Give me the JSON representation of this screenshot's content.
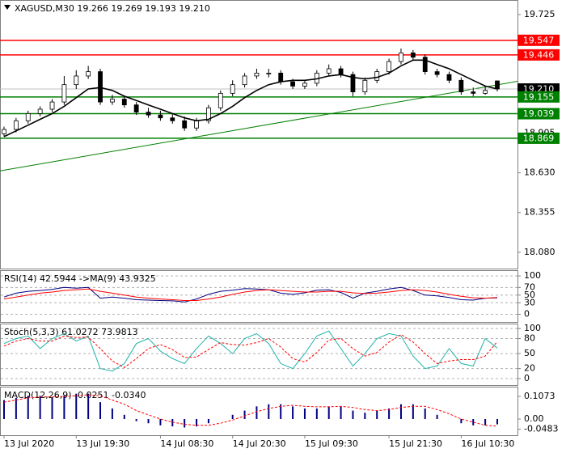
{
  "chart_data": [
    {
      "type": "candlestick",
      "title": "XAGUSD,M30  19.266 19.269 19.193 19.210",
      "open": [
        18.9,
        18.93,
        18.99,
        19.04,
        19.07,
        19.12,
        19.24,
        19.3,
        19.33,
        19.12,
        19.14,
        19.1,
        19.05,
        19.03,
        19.01,
        18.99,
        18.94,
        18.99,
        19.08,
        19.18,
        19.24,
        19.3,
        19.32,
        19.32,
        19.26,
        19.23,
        19.25,
        19.32,
        19.35,
        19.31,
        19.19,
        19.27,
        19.33,
        19.4,
        19.46,
        19.43,
        19.33,
        19.31,
        19.27,
        19.19,
        19.18,
        19.266
      ],
      "high": [
        18.95,
        19.01,
        19.06,
        19.09,
        19.14,
        19.3,
        19.34,
        19.37,
        19.35,
        19.17,
        19.16,
        19.12,
        19.08,
        19.06,
        19.04,
        19.02,
        19.01,
        19.1,
        19.2,
        19.27,
        19.32,
        19.35,
        19.35,
        19.34,
        19.28,
        19.27,
        19.34,
        19.38,
        19.37,
        19.33,
        19.29,
        19.35,
        19.42,
        19.49,
        19.48,
        19.45,
        19.35,
        19.33,
        19.29,
        19.22,
        19.23,
        19.269
      ],
      "low": [
        18.88,
        18.91,
        18.97,
        19.02,
        19.05,
        19.1,
        19.21,
        19.28,
        19.1,
        19.1,
        19.08,
        19.03,
        19.01,
        18.99,
        18.97,
        18.92,
        18.92,
        18.97,
        19.06,
        19.16,
        19.22,
        19.28,
        19.29,
        19.24,
        19.21,
        19.21,
        19.23,
        19.3,
        19.29,
        19.16,
        19.17,
        19.25,
        19.31,
        19.38,
        19.41,
        19.31,
        19.29,
        19.25,
        19.17,
        19.16,
        19.17,
        19.193
      ],
      "close": [
        18.93,
        18.99,
        19.04,
        19.07,
        19.12,
        19.24,
        19.3,
        19.33,
        19.12,
        19.14,
        19.1,
        19.05,
        19.03,
        19.01,
        18.99,
        18.94,
        18.99,
        19.08,
        19.18,
        19.24,
        19.3,
        19.32,
        19.32,
        19.26,
        19.23,
        19.25,
        19.32,
        19.35,
        19.31,
        19.19,
        19.27,
        19.33,
        19.4,
        19.46,
        19.43,
        19.33,
        19.31,
        19.27,
        19.19,
        19.18,
        19.2,
        19.21
      ],
      "series": [
        {
          "color": "#000000",
          "values": [
            18.88,
            18.92,
            18.96,
            19.0,
            19.04,
            19.09,
            19.15,
            19.21,
            19.22,
            19.2,
            19.16,
            19.13,
            19.1,
            19.07,
            19.04,
            19.01,
            18.99,
            19.0,
            19.04,
            19.09,
            19.15,
            19.2,
            19.24,
            19.26,
            19.27,
            19.27,
            19.28,
            19.3,
            19.31,
            19.29,
            19.28,
            19.29,
            19.32,
            19.37,
            19.41,
            19.41,
            19.38,
            19.35,
            19.31,
            19.27,
            19.23,
            19.21
          ]
        }
      ],
      "levels": [
        {
          "value": 19.547,
          "label": "19.547",
          "color": "#ff0000"
        },
        {
          "value": 19.446,
          "label": "19.446",
          "color": "#ff0000"
        },
        {
          "value": 19.21,
          "label": "19.210",
          "color": "#000000"
        },
        {
          "value": 19.155,
          "label": "19.155",
          "color": "#008000"
        },
        {
          "value": 19.039,
          "label": "19.039",
          "color": "#008000"
        },
        {
          "value": 18.869,
          "label": "18.869",
          "color": "#008000"
        }
      ],
      "trendline": {
        "color": "#008000",
        "values": [
          18.643,
          19.263
        ]
      },
      "ylim": [
        17.967,
        19.826
      ],
      "yticks": [
        19.725,
        18.905,
        {
          "value": 18.63,
          "label": "18.630"
        },
        18.355,
        {
          "value": 18.08,
          "label": "18.080"
        }
      ]
    },
    {
      "type": "line",
      "title": "RSI(14) 42.5944  ->MA(9) 43.9325",
      "series": [
        {
          "color": "#000080",
          "style": "solid",
          "values": [
            45,
            55,
            60,
            62,
            65,
            70,
            68,
            70,
            42,
            45,
            42,
            38,
            37,
            36,
            35,
            32,
            40,
            52,
            60,
            63,
            67,
            66,
            64,
            55,
            52,
            56,
            63,
            64,
            57,
            42,
            55,
            60,
            66,
            70,
            62,
            50,
            48,
            44,
            38,
            37,
            42,
            42.5944
          ]
        },
        {
          "color": "#ff0000",
          "style": "solid",
          "values": [
            40,
            45,
            50,
            55,
            58,
            62,
            64,
            66,
            60,
            55,
            50,
            45,
            42,
            40,
            38,
            36,
            36,
            40,
            45,
            52,
            58,
            62,
            64,
            62,
            60,
            58,
            58,
            60,
            60,
            56,
            54,
            55,
            58,
            62,
            64,
            62,
            58,
            52,
            47,
            43,
            42,
            43.9325
          ]
        }
      ],
      "ylim": [
        -20,
        115
      ],
      "yticks": [
        100,
        70,
        50,
        30,
        0
      ],
      "grid": true
    },
    {
      "type": "line",
      "title": "Stoch(5,3,3) 61.0272 73.9813",
      "series": [
        {
          "color": "#20b2aa",
          "style": "solid",
          "values": [
            70,
            80,
            85,
            60,
            80,
            90,
            75,
            85,
            20,
            15,
            30,
            70,
            80,
            55,
            40,
            30,
            60,
            85,
            70,
            50,
            80,
            90,
            70,
            30,
            20,
            50,
            85,
            95,
            60,
            25,
            50,
            80,
            90,
            85,
            45,
            20,
            25,
            60,
            30,
            25,
            80,
            61.0272
          ]
        },
        {
          "color": "#ff0000",
          "style": "dashed",
          "values": [
            65,
            75,
            80,
            75,
            75,
            85,
            82,
            83,
            60,
            35,
            22,
            40,
            60,
            68,
            58,
            42,
            43,
            58,
            72,
            68,
            67,
            72,
            80,
            63,
            40,
            33,
            52,
            77,
            80,
            60,
            45,
            52,
            73,
            88,
            73,
            50,
            30,
            35,
            38,
            38,
            45,
            73.9813
          ]
        }
      ],
      "ylim": [
        -13,
        110
      ],
      "yticks": [
        100,
        80,
        50,
        20,
        0
      ],
      "grid": true
    },
    {
      "type": "line",
      "title": "MACD(12,26,9) -0.0251 -0.0340",
      "series": [
        {
          "color": "#000080",
          "style": "bar",
          "values": [
            0.09,
            0.1,
            0.11,
            0.11,
            0.1,
            0.11,
            0.12,
            0.12,
            0.08,
            0.05,
            0.02,
            -0.01,
            -0.02,
            -0.03,
            -0.035,
            -0.04,
            -0.035,
            -0.02,
            0.0,
            0.02,
            0.04,
            0.06,
            0.07,
            0.07,
            0.06,
            0.05,
            0.05,
            0.06,
            0.06,
            0.04,
            0.03,
            0.04,
            0.05,
            0.07,
            0.07,
            0.05,
            0.02,
            0.0,
            -0.02,
            -0.03,
            -0.03,
            -0.0251
          ]
        },
        {
          "color": "#ff0000",
          "style": "dashed",
          "values": [
            0.08,
            0.09,
            0.1,
            0.105,
            0.105,
            0.107,
            0.11,
            0.115,
            0.11,
            0.09,
            0.07,
            0.04,
            0.02,
            0.0,
            -0.015,
            -0.025,
            -0.03,
            -0.03,
            -0.02,
            -0.005,
            0.015,
            0.035,
            0.05,
            0.06,
            0.065,
            0.06,
            0.058,
            0.058,
            0.06,
            0.055,
            0.045,
            0.04,
            0.045,
            0.055,
            0.06,
            0.06,
            0.045,
            0.025,
            0.0,
            -0.015,
            -0.03,
            -0.034
          ]
        }
      ],
      "ylim": [
        -0.0766,
        0.1533
      ],
      "yticks": [
        0.1073,
        {
          "value": 0,
          "label": "0.00"
        },
        -0.0483
      ],
      "categories": [
        "13 Jul 2020",
        null,
        null,
        null,
        null,
        null,
        "13 Jul 19:30",
        null,
        null,
        null,
        null,
        null,
        null,
        "14 Jul 08:30",
        null,
        null,
        null,
        null,
        null,
        "14 Jul 20:30",
        null,
        null,
        null,
        null,
        null,
        "15 Jul 09:30",
        null,
        null,
        null,
        null,
        null,
        null,
        "15 Jul 21:30",
        null,
        null,
        null,
        null,
        null,
        "16 Jul 10:30",
        null,
        null,
        null
      ]
    }
  ]
}
